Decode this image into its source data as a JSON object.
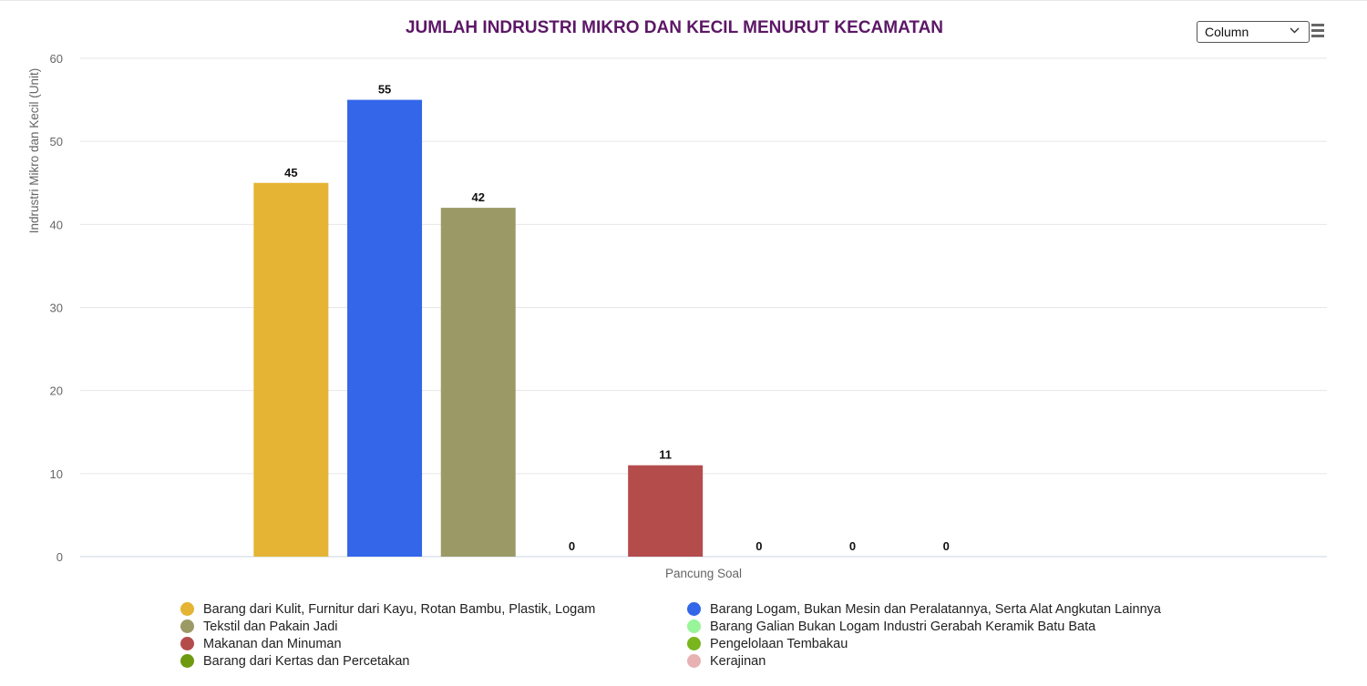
{
  "chart_data": {
    "type": "bar",
    "title": "JUMLAH INDRUSTRI MIKRO DAN KECIL MENURUT KECAMATAN",
    "ylabel": "Indrustri Mikro dan Kecil (Unit)",
    "xlabel": "",
    "categories": [
      "Pancung Soal"
    ],
    "ylim": [
      0,
      60
    ],
    "yticks": [
      "0",
      "10",
      "20",
      "30",
      "40",
      "50",
      "60"
    ],
    "grid": true,
    "legend_position": "bottom",
    "series": [
      {
        "name": "Barang dari Kulit, Furnitur dari Kayu, Rotan Bambu, Plastik, Logam",
        "values": [
          45
        ],
        "color": "#e5b434"
      },
      {
        "name": "Barang Logam, Bukan Mesin dan Peralatannya, Serta Alat Angkutan Lainnya",
        "values": [
          55
        ],
        "color": "#3366e8"
      },
      {
        "name": "Tekstil dan Pakain Jadi",
        "values": [
          42
        ],
        "color": "#9b9a66"
      },
      {
        "name": "Barang Galian Bukan Logam Industri Gerabah Keramik Batu Bata",
        "values": [
          0
        ],
        "color": "#99f599"
      },
      {
        "name": "Makanan dan Minuman",
        "values": [
          11
        ],
        "color": "#b44c4c"
      },
      {
        "name": "Pengelolaan Tembakau",
        "values": [
          0
        ],
        "color": "#7ab51d"
      },
      {
        "name": "Barang dari Kertas dan Percetakan",
        "values": [
          0
        ],
        "color": "#6e9a10"
      },
      {
        "name": "Kerajinan",
        "values": [
          0
        ],
        "color": "#e8b2b2"
      }
    ]
  },
  "controls": {
    "chart_type_selected": "Column"
  }
}
